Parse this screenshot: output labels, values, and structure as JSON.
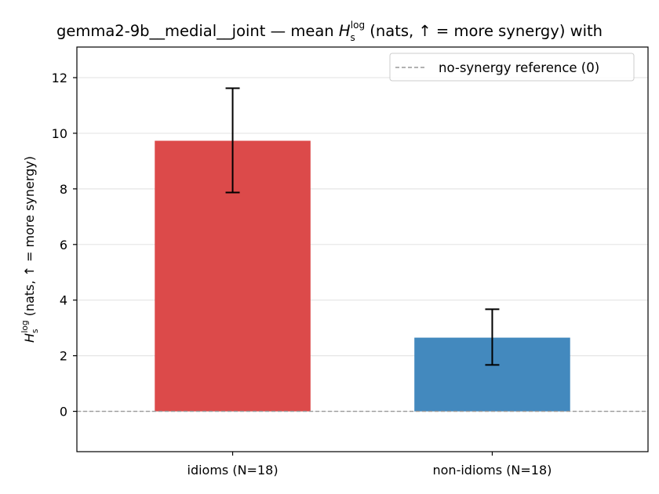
{
  "chart_data": {
    "type": "bar",
    "title_prefix": "gemma2-9b__medial__joint — mean ",
    "title_suffix": " (nats, ↑ = more synergy) with",
    "symbol_base": "H",
    "symbol_sub": "s",
    "symbol_sup": "log",
    "ylabel_suffix": " (nats, ↑ = more synergy)",
    "categories": [
      "idioms (N=18)",
      "non-idioms (N=18)"
    ],
    "values": [
      9.73,
      2.65
    ],
    "err_low": [
      7.87,
      1.67
    ],
    "err_high": [
      11.62,
      3.67
    ],
    "bar_colors": [
      "#dc4a4a",
      "#4389be"
    ],
    "ylim": [
      -1.45,
      13.1
    ],
    "yticks": [
      0,
      2,
      4,
      6,
      8,
      10,
      12
    ],
    "grid": "horizontal",
    "legend": {
      "placement": "top-right",
      "label": "no-synergy reference (0)"
    },
    "reference_line": 0
  }
}
